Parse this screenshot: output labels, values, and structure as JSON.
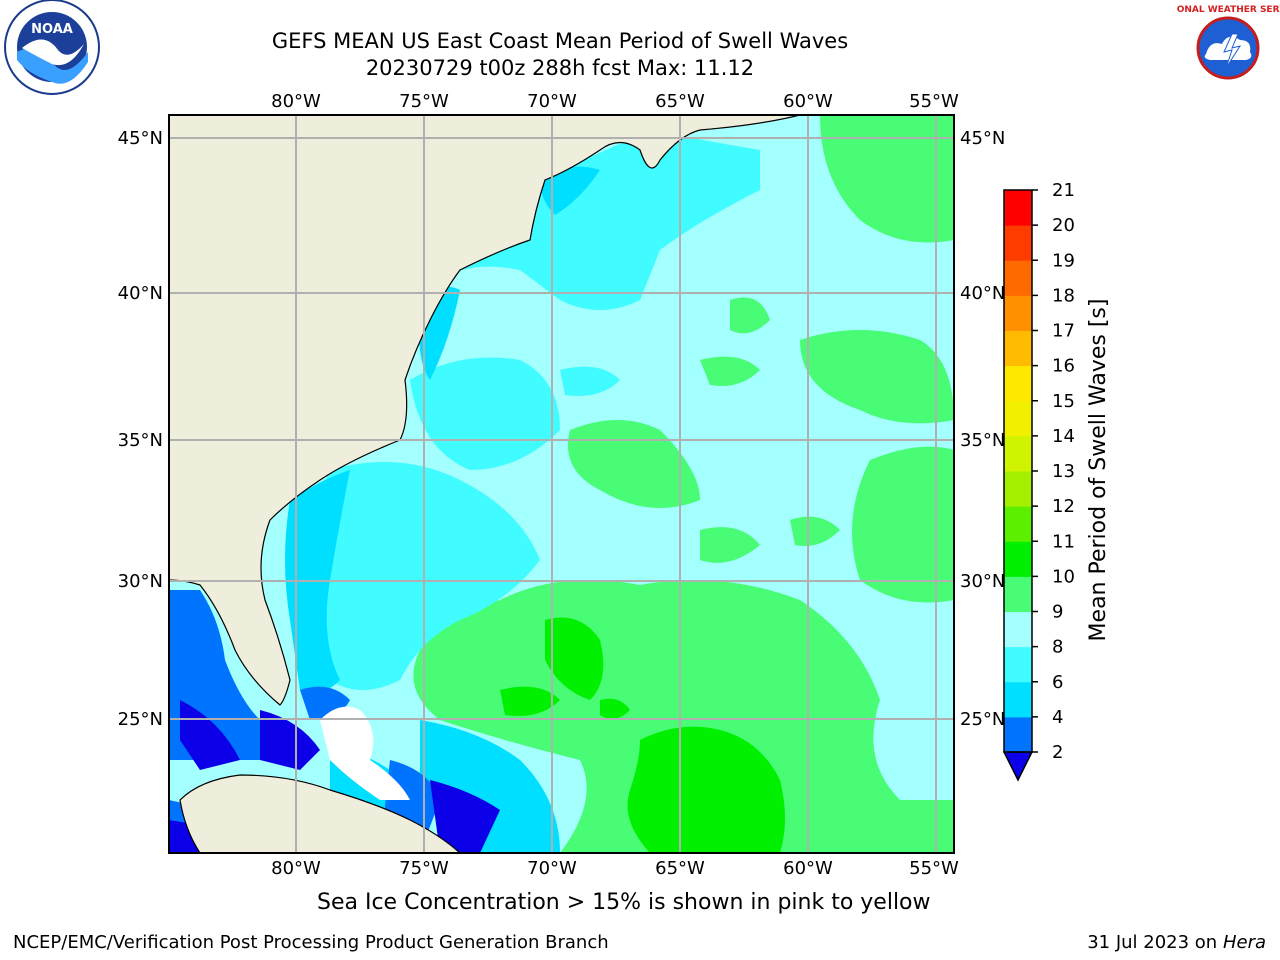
{
  "header": {
    "title_line1": "GEFS MEAN US East Coast Mean Period of Swell Waves",
    "title_line2": "20230729 t00z 288h fcst   Max: 11.12"
  },
  "logos": {
    "left": "noaa-logo",
    "left_text": "NOAA",
    "right": "nws-logo",
    "right_text": "NATIONAL WEATHER SERVICE"
  },
  "map": {
    "lon_labels": [
      "80°W",
      "75°W",
      "70°W",
      "65°W",
      "60°W",
      "55°W"
    ],
    "lat_labels": [
      "45°N",
      "40°N",
      "35°N",
      "30°N",
      "25°N"
    ],
    "land_color": "#efeedd",
    "missing_color": "#ffffff"
  },
  "colorbar": {
    "label": "Mean Period of Swell Waves [s]",
    "ticks": [
      "2",
      "4",
      "6",
      "8",
      "9",
      "10",
      "11",
      "12",
      "13",
      "14",
      "15",
      "16",
      "17",
      "18",
      "19",
      "20",
      "21"
    ],
    "colors": [
      "#0c00e8",
      "#0073ff",
      "#00dfff",
      "#40fbff",
      "#a4ffff",
      "#48fc76",
      "#00f000",
      "#5cf000",
      "#a5f000",
      "#cff300",
      "#f0f000",
      "#ffe800",
      "#ffbb00",
      "#ff9100",
      "#ff6a00",
      "#ff3c00",
      "#ff0000"
    ]
  },
  "footer": {
    "caption": "Sea Ice Concentration > 15% is shown in pink to yellow",
    "credit": "NCEP/EMC/Verification Post Processing Product Generation Branch",
    "date": "31 Jul 2023 on",
    "machine": "Hera"
  }
}
